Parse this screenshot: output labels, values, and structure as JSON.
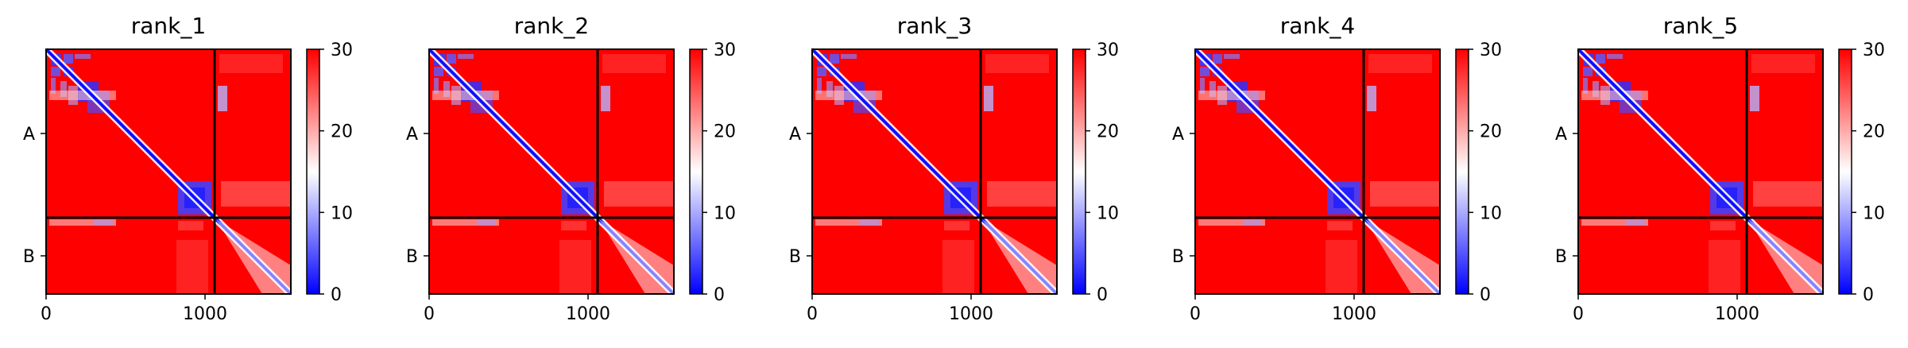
{
  "colorbar": {
    "ticks": [
      0,
      10,
      20,
      30
    ],
    "range": [
      0,
      30
    ],
    "colors": {
      "low": "#0000ff",
      "mid": "#ffffff",
      "high": "#ff0000"
    }
  },
  "chart_data": [
    {
      "type": "heatmap",
      "title": "rank_1",
      "xticks": [
        "0",
        "1000"
      ],
      "yticks": [
        "A",
        "B"
      ],
      "xlim": [
        0,
        1540
      ],
      "chain_break": 1060,
      "colorbar_range": [
        0,
        30
      ],
      "colorbar_ticks": [
        0,
        10,
        20,
        30
      ]
    },
    {
      "type": "heatmap",
      "title": "rank_2",
      "xticks": [
        "0",
        "1000"
      ],
      "yticks": [
        "A",
        "B"
      ],
      "xlim": [
        0,
        1540
      ],
      "chain_break": 1060,
      "colorbar_range": [
        0,
        30
      ],
      "colorbar_ticks": [
        0,
        10,
        20,
        30
      ]
    },
    {
      "type": "heatmap",
      "title": "rank_3",
      "xticks": [
        "0",
        "1000"
      ],
      "yticks": [
        "A",
        "B"
      ],
      "xlim": [
        0,
        1540
      ],
      "chain_break": 1060,
      "colorbar_range": [
        0,
        30
      ],
      "colorbar_ticks": [
        0,
        10,
        20,
        30
      ]
    },
    {
      "type": "heatmap",
      "title": "rank_4",
      "xticks": [
        "0",
        "1000"
      ],
      "yticks": [
        "A",
        "B"
      ],
      "xlim": [
        0,
        1540
      ],
      "chain_break": 1060,
      "colorbar_range": [
        0,
        30
      ],
      "colorbar_ticks": [
        0,
        10,
        20,
        30
      ]
    },
    {
      "type": "heatmap",
      "title": "rank_5",
      "xticks": [
        "0",
        "1000"
      ],
      "yticks": [
        "A",
        "B"
      ],
      "xlim": [
        0,
        1540
      ],
      "chain_break": 1060,
      "colorbar_range": [
        0,
        30
      ],
      "colorbar_ticks": [
        0,
        10,
        20,
        30
      ]
    }
  ]
}
